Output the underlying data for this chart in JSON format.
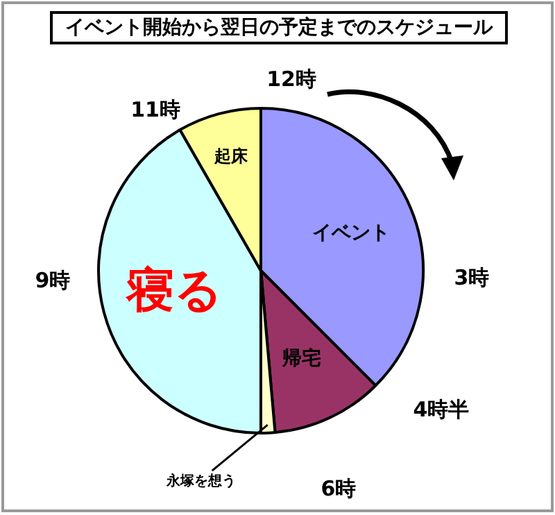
{
  "chart_data": {
    "type": "pie",
    "title": "イベント開始から翌日の予定までのスケジュール",
    "categories": [
      "イベント",
      "帰宅",
      "永塚を想う",
      "寝る",
      "起床"
    ],
    "values": [
      37.5,
      11.1,
      1.4,
      41.7,
      8.3
    ],
    "colors": [
      "#9999ff",
      "#993366",
      "#ffffcc",
      "#ccffff",
      "#ffff99"
    ],
    "annotations": [
      "12時",
      "3時",
      "4時半",
      "6時",
      "9時",
      "11時"
    ],
    "legend": false
  }
}
